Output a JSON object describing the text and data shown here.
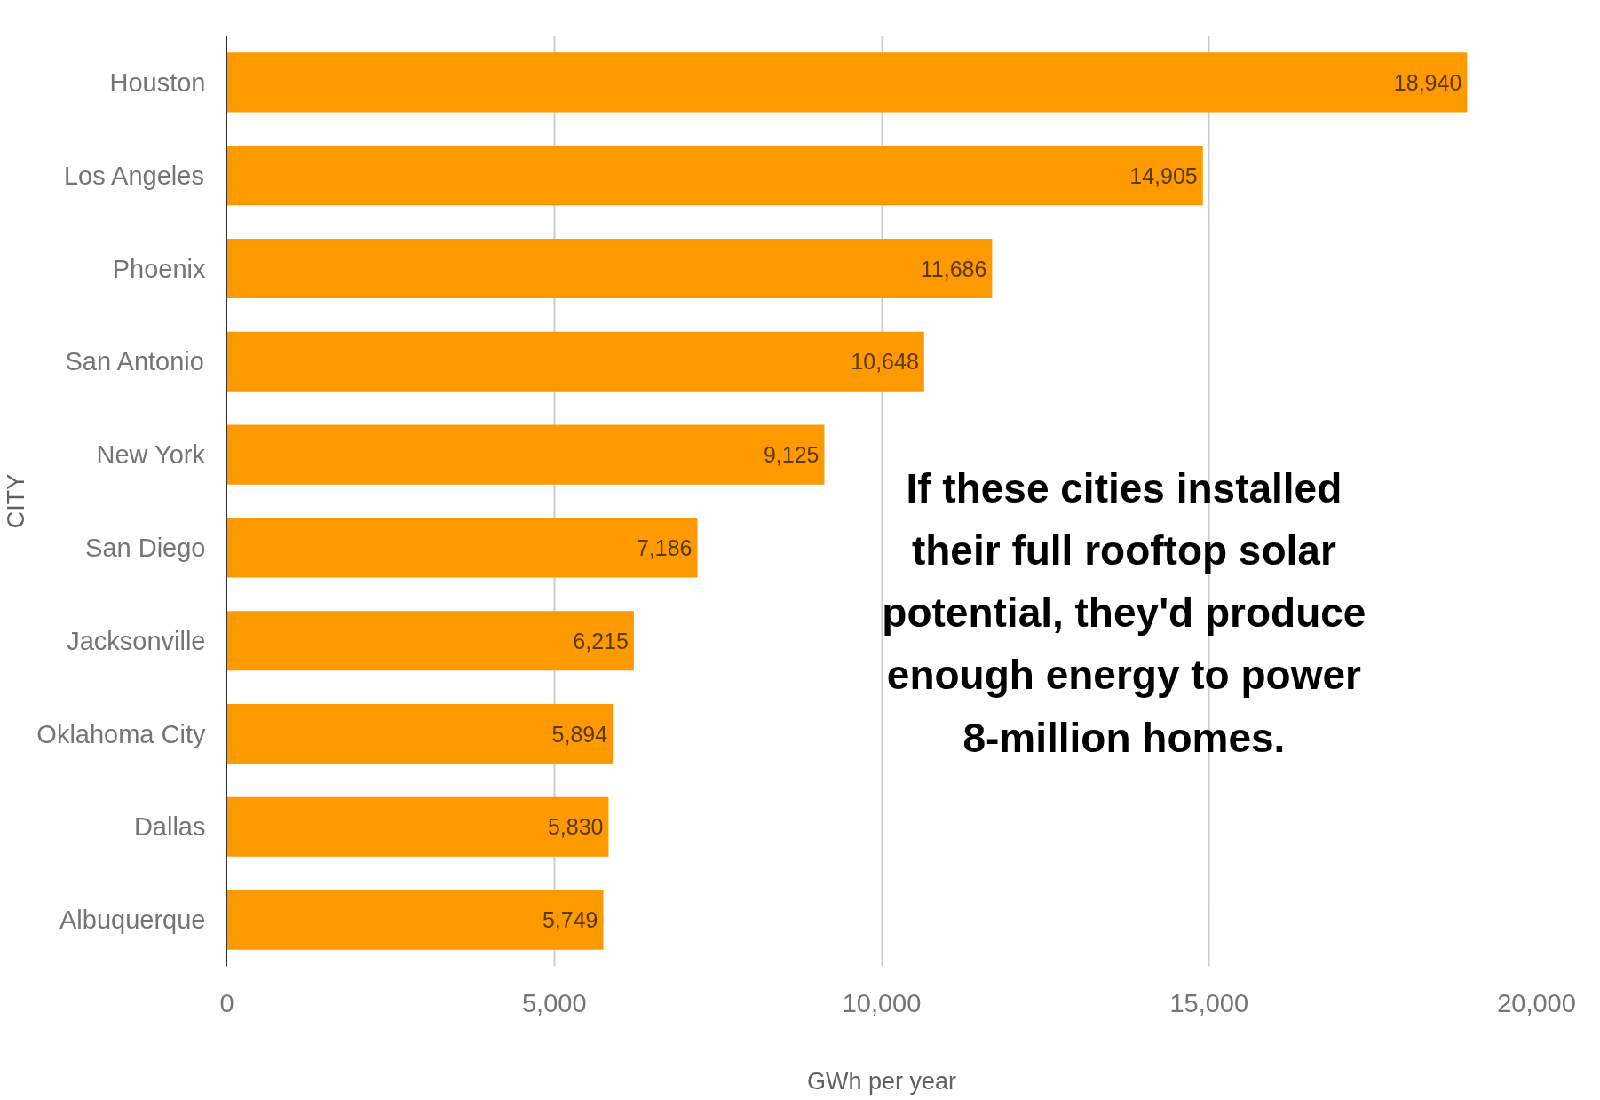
{
  "chart_data": {
    "type": "bar",
    "orientation": "horizontal",
    "categories": [
      "Houston",
      "Los Angeles",
      "Phoenix",
      "San Antonio",
      "New York",
      "San Diego",
      "Jacksonville",
      "Oklahoma City",
      "Dallas",
      "Albuquerque"
    ],
    "values": [
      18940,
      14905,
      11686,
      10648,
      9125,
      7186,
      6215,
      5894,
      5830,
      5749
    ],
    "color": "#ff9900",
    "value_labels": [
      "18,940",
      "14,905",
      "11,686",
      "10,648",
      "9,125",
      "7,186",
      "6,215",
      "5,894",
      "5,830",
      "5,749"
    ],
    "xlabel": "GWh per year",
    "ylabel": "CITY",
    "xlim": [
      0,
      20000
    ],
    "xticks": [
      {
        "value": 0,
        "label": "0"
      },
      {
        "value": 5000,
        "label": "5,000"
      },
      {
        "value": 10000,
        "label": "10,000"
      },
      {
        "value": 15000,
        "label": "15,000"
      },
      {
        "value": 20000,
        "label": "20,000"
      }
    ],
    "grid": "x",
    "annotations": [
      "If these cities installed their full rooftop solar potential, they'd produce enough energy to power 8-million homes."
    ]
  }
}
